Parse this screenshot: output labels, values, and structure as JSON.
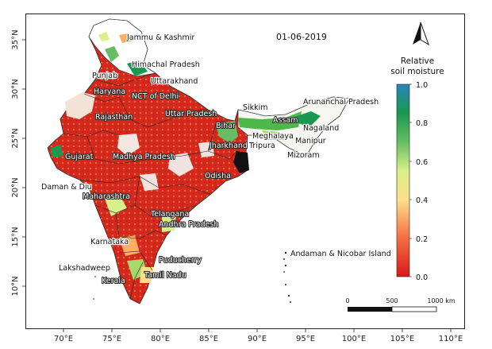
{
  "date": "01-06-2019",
  "legend": {
    "title_line1": "Relative",
    "title_line2": "soil moisture",
    "ticks": [
      "1.0",
      "0.8",
      "0.6",
      "0.4",
      "0.2",
      "0.0"
    ],
    "colors": [
      "#d7191c",
      "#f46d43",
      "#fdae61",
      "#fee08b",
      "#d9ef8b",
      "#66bd63",
      "#1a9850",
      "#2b83ba"
    ]
  },
  "scale_bar": {
    "labels": [
      "0",
      "500",
      "1000 km"
    ]
  },
  "axes": {
    "x_ticks": [
      "70°E",
      "75°E",
      "80°E",
      "85°E",
      "90°E",
      "95°E",
      "100°E",
      "105°E",
      "110°E"
    ],
    "y_ticks": [
      "35°N",
      "30°N",
      "25°N",
      "20°N",
      "15°N",
      "10°N"
    ]
  },
  "regions": {
    "jammu_kashmir": "Jammu & Kashmir",
    "himachal": "Himachal Pradesh",
    "punjab": "Punjab",
    "uttarakhand": "Uttarakhand",
    "haryana": "Haryana",
    "delhi": "NCT of Delhi",
    "rajasthan": "Rajasthan",
    "uttar_pradesh": "Uttar Pradesh",
    "sikkim": "Sikkim",
    "arunachal": "Arunanchal Pradesh",
    "bihar": "Bihar",
    "assam": "Assam",
    "nagaland": "Nagaland",
    "meghalaya": "Meghalaya",
    "manipur": "Manipur",
    "jharkhand": "Jharkhand",
    "tripura": "Tripura",
    "mizoram": "Mizoram",
    "gujarat": "Gujarat",
    "madhya_pradesh": "Madhya Pradesh",
    "odisha": "Odisha",
    "daman_diu": "Daman & Diu",
    "maharashtra": "Maharashtra",
    "telangana": "Telangana",
    "andhra": "Andhra Pradesh",
    "karnataka": "Karnataka",
    "andaman": "Andaman & Nicobar Island",
    "puducherry": "Puducherry",
    "lakshadweep": "Lakshadweep",
    "tamil_nadu": "Tamil Nadu",
    "kerala": "Kerala"
  },
  "north_arrow_icon": "north-arrow-icon"
}
